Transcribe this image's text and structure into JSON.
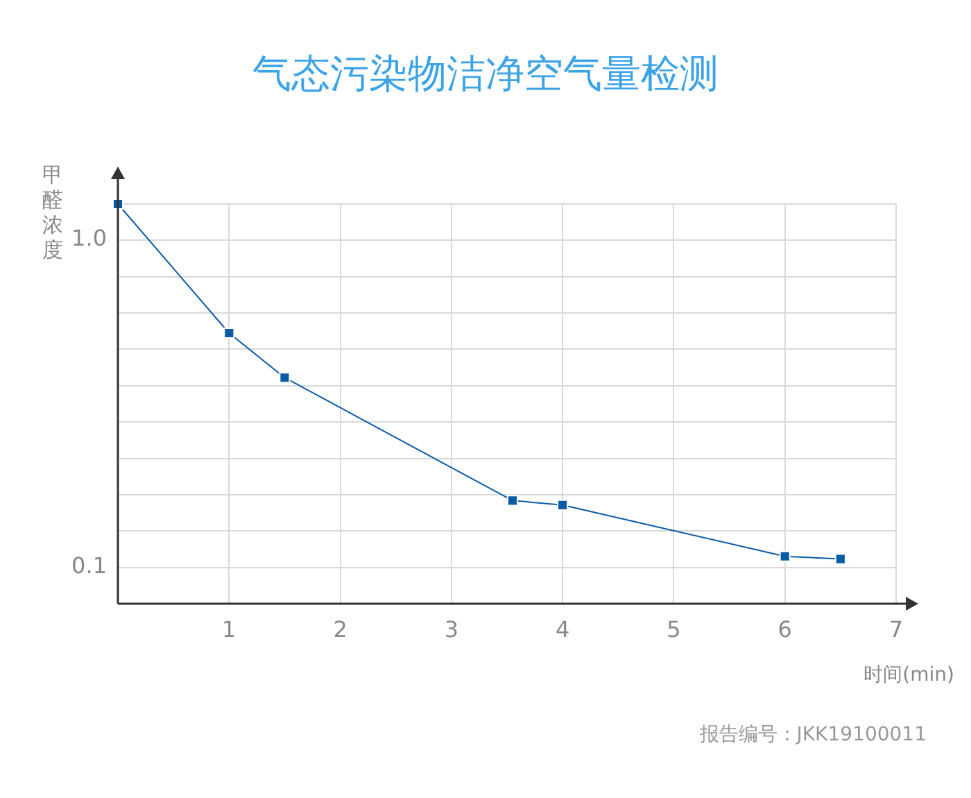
{
  "chart_data": {
    "type": "line",
    "title": "气态污染物洁净空气量检测",
    "xlabel": "时间(min)",
    "ylabel": "甲醛浓度",
    "annotations": [
      "报告编号：JKK19100011"
    ],
    "series": [
      {
        "color": "#0b5aa6",
        "x": [
          0,
          1,
          1.5,
          3.55,
          4,
          6,
          6.5
        ],
        "values": [
          1.29,
          0.52,
          0.38,
          0.16,
          0.155,
          0.108,
          0.106
        ]
      }
    ],
    "log": "y",
    "marker": "square",
    "line_style": "solid",
    "grid": true,
    "legend": false,
    "xlim": [
      0,
      7
    ],
    "xticks": [
      1,
      2,
      3,
      4,
      5,
      6,
      7
    ],
    "ylim": [
      0.0774,
      1.29
    ],
    "yticks": [
      {
        "value": 0.1,
        "label": "0.1"
      },
      {
        "value": 0.129,
        "label": null
      },
      {
        "value": 0.167,
        "label": null
      },
      {
        "value": 0.215,
        "label": null
      },
      {
        "value": 0.278,
        "label": null
      },
      {
        "value": 0.359,
        "label": null
      },
      {
        "value": 0.464,
        "label": null
      },
      {
        "value": 0.599,
        "label": null
      },
      {
        "value": 0.774,
        "label": null
      },
      {
        "value": 1,
        "label": "1.0"
      },
      {
        "value": 1.29,
        "label": null
      }
    ]
  }
}
